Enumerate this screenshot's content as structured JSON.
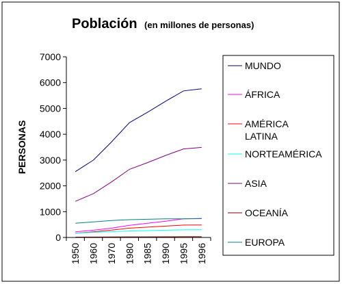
{
  "chart_data": {
    "type": "line",
    "title": "Población",
    "subtitle": "(en millones de personas)",
    "xlabel": "",
    "ylabel": "PERSONAS",
    "ylim": [
      0,
      7000
    ],
    "yticks": [
      0,
      1000,
      2000,
      3000,
      4000,
      5000,
      6000,
      7000
    ],
    "categories": [
      "1950",
      "1960",
      "1970",
      "1980",
      "1985",
      "1990",
      "1995",
      "1996"
    ],
    "grid": false,
    "legend": "right",
    "series": [
      {
        "name": "MUNDO",
        "color": "#000080",
        "values": [
          2550,
          3000,
          3700,
          4450,
          4850,
          5280,
          5680,
          5760
        ]
      },
      {
        "name": "ÁFRICA",
        "color": "#ff00ff",
        "values": [
          220,
          280,
          360,
          470,
          550,
          630,
          720,
          740
        ]
      },
      {
        "name": "AMÉRICA LATINA",
        "color": "#ff0000",
        "values": [
          165,
          220,
          285,
          360,
          400,
          440,
          480,
          485
        ]
      },
      {
        "name": "NORTEAMÉRICA",
        "color": "#00ffff",
        "values": [
          165,
          200,
          225,
          250,
          265,
          280,
          295,
          300
        ]
      },
      {
        "name": "ASIA",
        "color": "#800080",
        "values": [
          1400,
          1700,
          2150,
          2640,
          2900,
          3180,
          3430,
          3490
        ]
      },
      {
        "name": "OCEANÍA",
        "color": "#800000",
        "values": [
          13,
          16,
          19,
          23,
          25,
          27,
          29,
          29
        ]
      },
      {
        "name": "EUROPA",
        "color": "#008080",
        "values": [
          550,
          605,
          655,
          690,
          705,
          720,
          725,
          728
        ]
      }
    ]
  }
}
